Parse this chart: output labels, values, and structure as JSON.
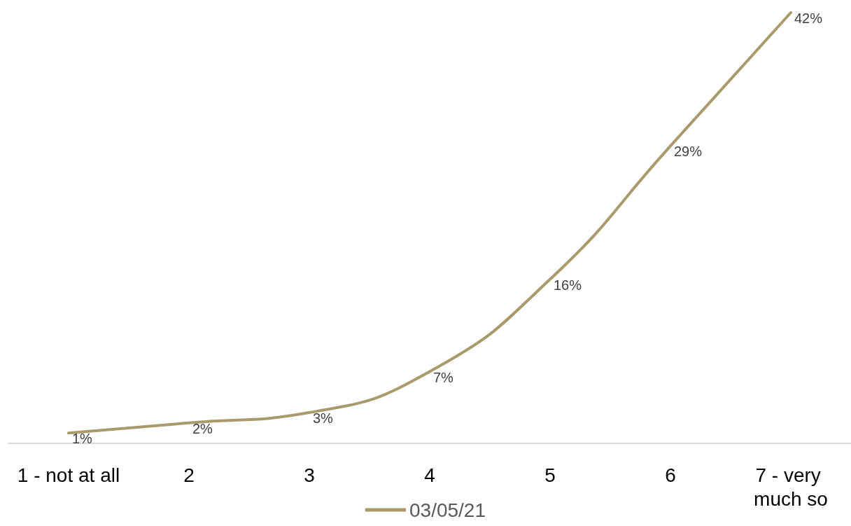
{
  "chart_data": {
    "type": "line",
    "categories": [
      "1 - not at all",
      "2",
      "3",
      "4",
      "5",
      "6",
      "7 - very much so"
    ],
    "series": [
      {
        "name": "03/05/21",
        "color": "#a89a6a",
        "values": [
          1,
          2,
          3,
          7,
          16,
          29,
          42
        ],
        "value_labels": [
          "1%",
          "2%",
          "3%",
          "7%",
          "16%",
          "29%",
          "42%"
        ]
      }
    ],
    "legend": "bottom",
    "grid": false,
    "marker": "none",
    "line_style": "solid"
  }
}
